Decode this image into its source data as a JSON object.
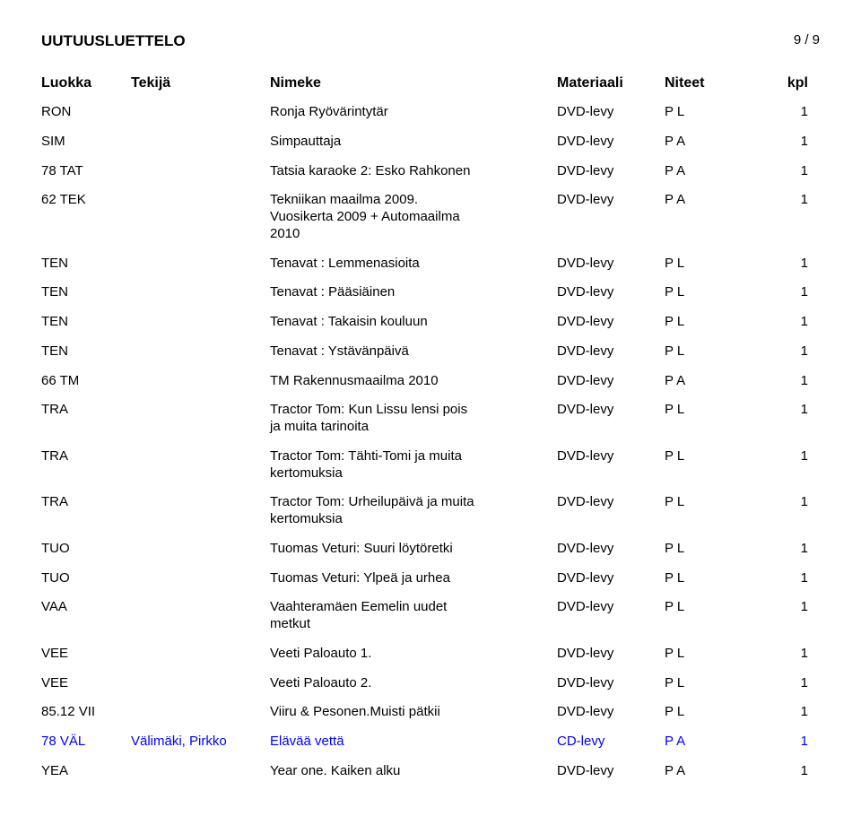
{
  "doc": {
    "title": "UUTUUSLUETTELO",
    "page": "9 / 9"
  },
  "headers": {
    "luokka": "Luokka",
    "tekija": "Tekijä",
    "nimeke": "Nimeke",
    "materiaali": "Materiaali",
    "niteet": "Niteet",
    "kpl": "kpl"
  },
  "colors": {
    "text": "#000000",
    "highlight": "#0000ff",
    "background": "#ffffff"
  },
  "rows": [
    {
      "luokka": "RON",
      "tekija": "",
      "nimeke": "Ronja Ryövärintytär",
      "mat": "DVD-levy",
      "niteet": "P L",
      "kpl": "1",
      "blue": false
    },
    {
      "luokka": "SIM",
      "tekija": "",
      "nimeke": "Simpauttaja",
      "mat": "DVD-levy",
      "niteet": "P A",
      "kpl": "1",
      "blue": false
    },
    {
      "luokka": "78 TAT",
      "tekija": "",
      "nimeke": "Tatsia karaoke 2: Esko Rahkonen",
      "mat": "DVD-levy",
      "niteet": "P A",
      "kpl": "1",
      "blue": false
    },
    {
      "luokka": "62 TEK",
      "tekija": "",
      "nimeke": "Tekniikan maailma 2009.\nVuosikerta 2009 + Automaailma\n2010",
      "mat": "DVD-levy",
      "niteet": "P A",
      "kpl": "1",
      "blue": false
    },
    {
      "luokka": "TEN",
      "tekija": "",
      "nimeke": "Tenavat : Lemmenasioita",
      "mat": "DVD-levy",
      "niteet": "P L",
      "kpl": "1",
      "blue": false
    },
    {
      "luokka": "TEN",
      "tekija": "",
      "nimeke": "Tenavat : Pääsiäinen",
      "mat": "DVD-levy",
      "niteet": "P L",
      "kpl": "1",
      "blue": false
    },
    {
      "luokka": "TEN",
      "tekija": "",
      "nimeke": "Tenavat : Takaisin kouluun",
      "mat": "DVD-levy",
      "niteet": "P L",
      "kpl": "1",
      "blue": false
    },
    {
      "luokka": "TEN",
      "tekija": "",
      "nimeke": "Tenavat : Ystävänpäivä",
      "mat": "DVD-levy",
      "niteet": "P L",
      "kpl": "1",
      "blue": false
    },
    {
      "luokka": "66 TM",
      "tekija": "",
      "nimeke": "TM Rakennusmaailma 2010",
      "mat": "DVD-levy",
      "niteet": "P A",
      "kpl": "1",
      "blue": false
    },
    {
      "luokka": "TRA",
      "tekija": "",
      "nimeke": "Tractor Tom: Kun Lissu lensi pois\nja muita tarinoita",
      "mat": "DVD-levy",
      "niteet": "P L",
      "kpl": "1",
      "blue": false
    },
    {
      "luokka": "TRA",
      "tekija": "",
      "nimeke": "Tractor Tom: Tähti-Tomi ja muita\nkertomuksia",
      "mat": "DVD-levy",
      "niteet": "P L",
      "kpl": "1",
      "blue": false
    },
    {
      "luokka": "TRA",
      "tekija": "",
      "nimeke": "Tractor Tom: Urheilupäivä ja muita\nkertomuksia",
      "mat": "DVD-levy",
      "niteet": "P L",
      "kpl": "1",
      "blue": false
    },
    {
      "luokka": "TUO",
      "tekija": "",
      "nimeke": "Tuomas Veturi: Suuri löytöretki",
      "mat": "DVD-levy",
      "niteet": "P L",
      "kpl": "1",
      "blue": false
    },
    {
      "luokka": "TUO",
      "tekija": "",
      "nimeke": "Tuomas Veturi: Ylpeä ja urhea",
      "mat": "DVD-levy",
      "niteet": "P L",
      "kpl": "1",
      "blue": false
    },
    {
      "luokka": "VAA",
      "tekija": "",
      "nimeke": "Vaahteramäen Eemelin uudet\nmetkut",
      "mat": "DVD-levy",
      "niteet": "P L",
      "kpl": "1",
      "blue": false
    },
    {
      "luokka": "VEE",
      "tekija": "",
      "nimeke": "Veeti Paloauto 1.",
      "mat": "DVD-levy",
      "niteet": "P L",
      "kpl": "1",
      "blue": false
    },
    {
      "luokka": "VEE",
      "tekija": "",
      "nimeke": "Veeti Paloauto 2.",
      "mat": "DVD-levy",
      "niteet": "P L",
      "kpl": "1",
      "blue": false
    },
    {
      "luokka": "85.12 VII",
      "tekija": "",
      "nimeke": "Viiru & Pesonen.Muisti pätkii",
      "mat": "DVD-levy",
      "niteet": "P L",
      "kpl": "1",
      "blue": false
    },
    {
      "luokka": "78 VÄL",
      "tekija": "Välimäki, Pirkko",
      "nimeke": "Elävää vettä",
      "mat": "CD-levy",
      "niteet": "P A",
      "kpl": "1",
      "blue": true
    },
    {
      "luokka": "YEA",
      "tekija": "",
      "nimeke": "Year one. Kaiken alku",
      "mat": "DVD-levy",
      "niteet": "P A",
      "kpl": "1",
      "blue": false
    }
  ]
}
